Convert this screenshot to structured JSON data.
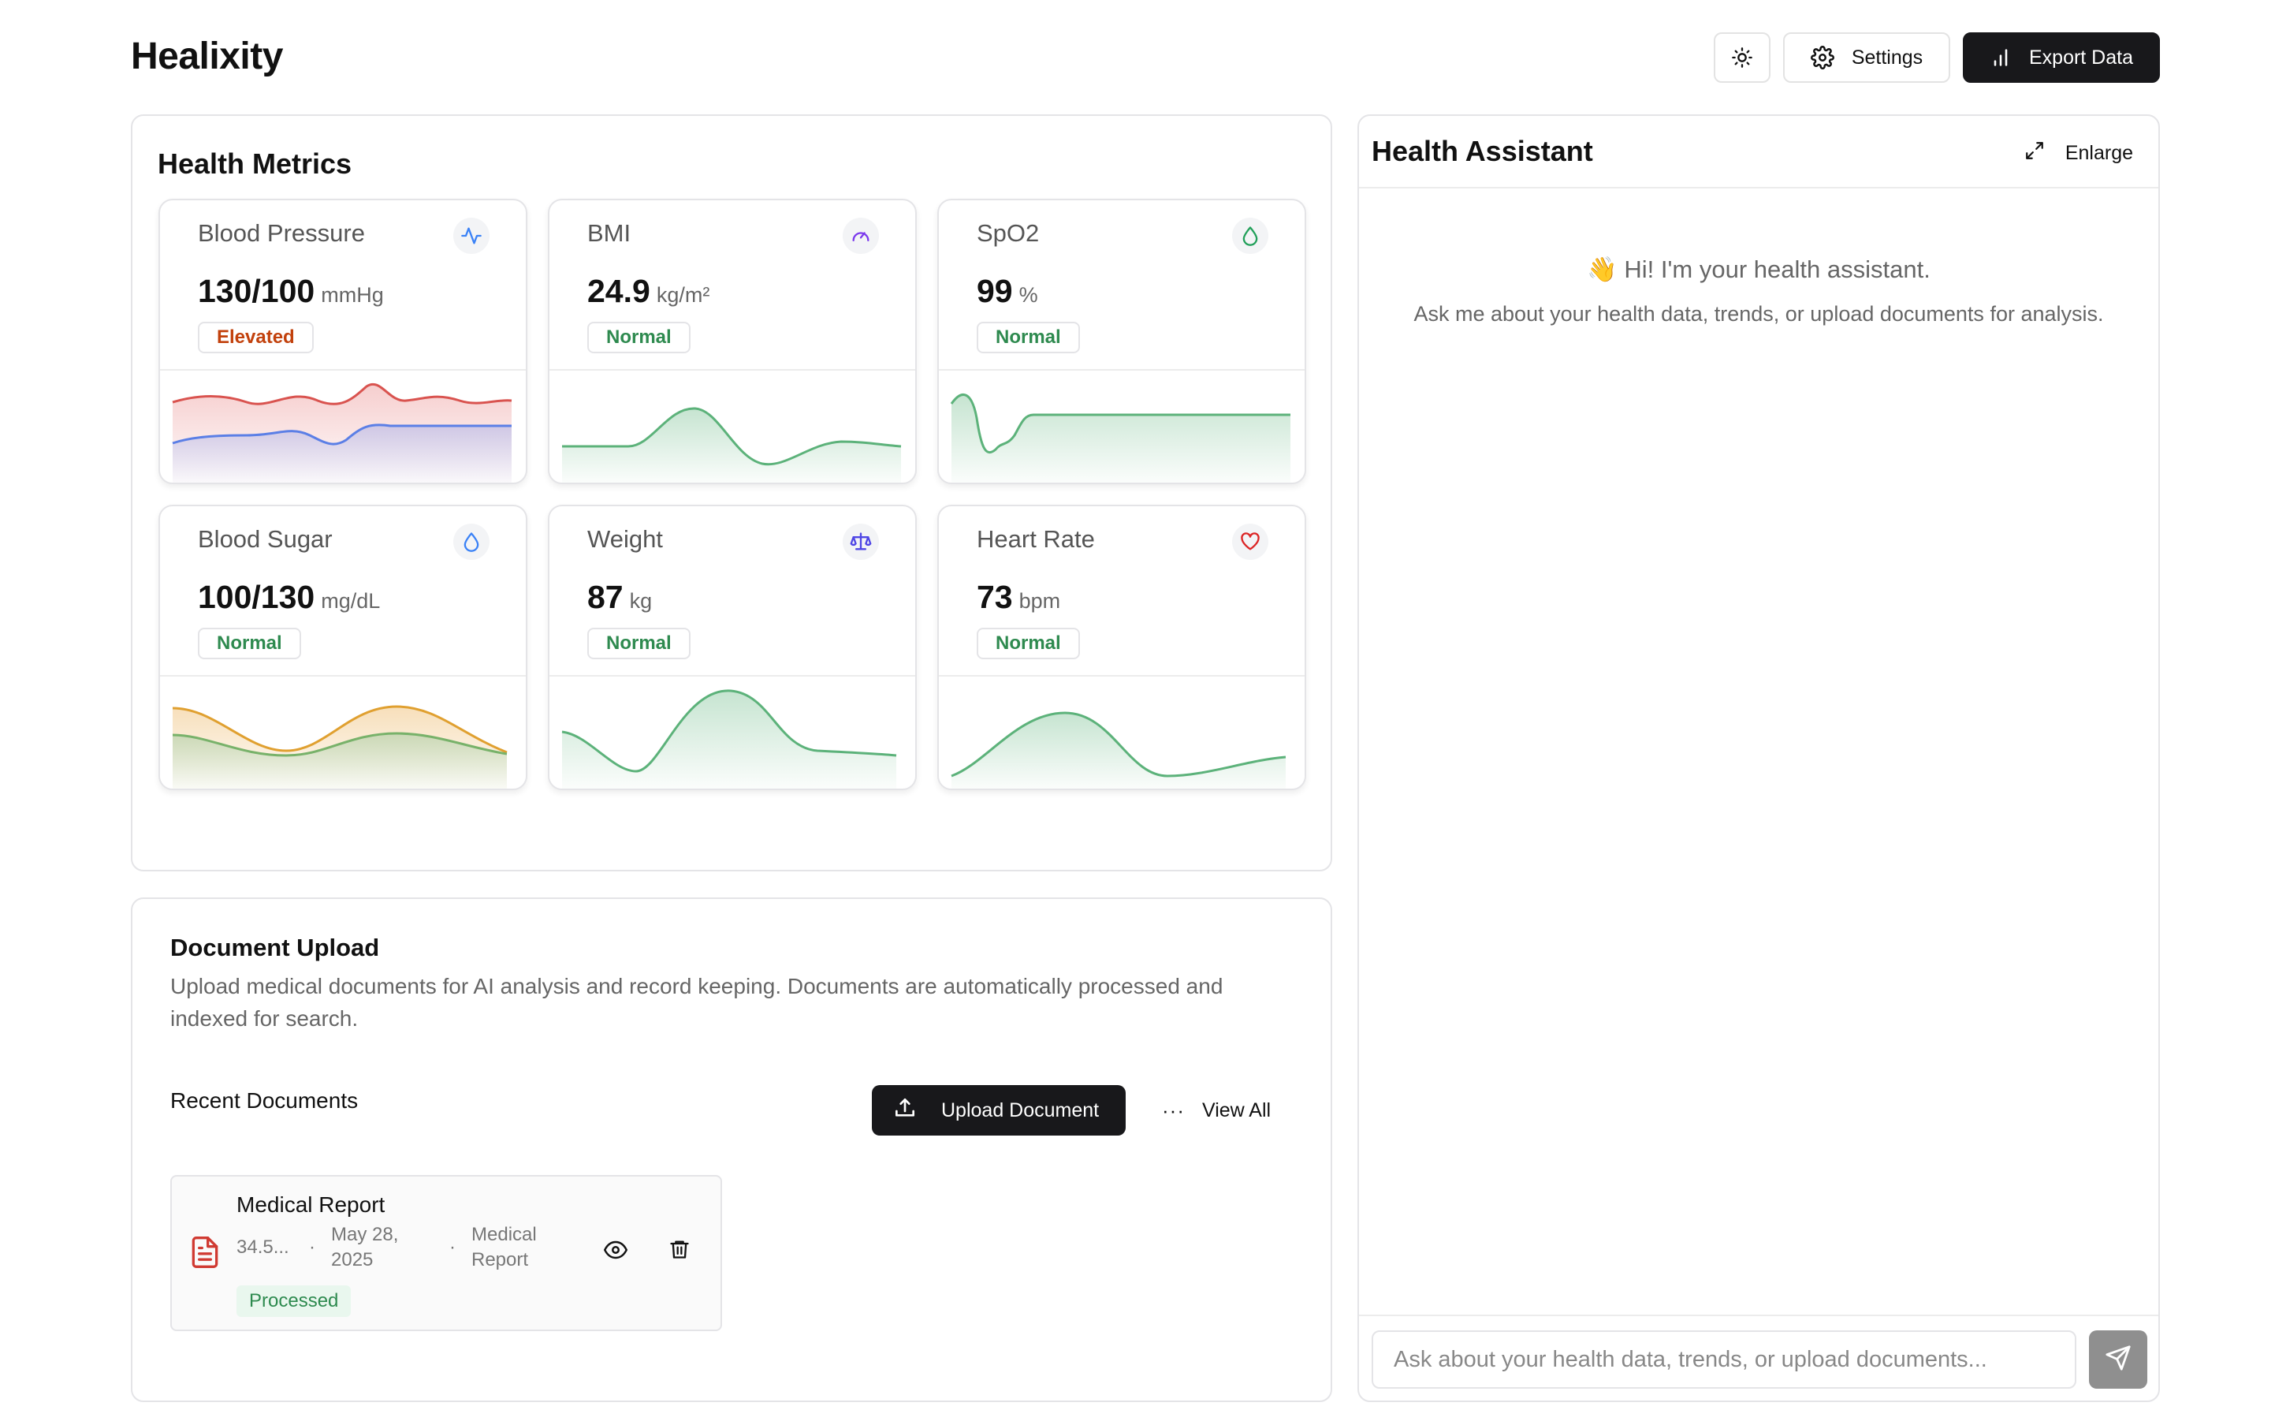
{
  "app": {
    "title": "Healixity"
  },
  "header": {
    "theme_icon": "sun-icon",
    "settings_label": "Settings",
    "export_label": "Export Data"
  },
  "metrics": {
    "title": "Health Metrics",
    "cards": [
      {
        "name": "Blood Pressure",
        "value": "130/100",
        "unit": "mmHg",
        "status": "Elevated",
        "status_color": "#c2410c",
        "icon": "activity-icon",
        "icon_color": "#3b82f6"
      },
      {
        "name": "BMI",
        "value": "24.9",
        "unit": "kg/m²",
        "status": "Normal",
        "status_color": "#2e8a4f",
        "icon": "gauge-icon",
        "icon_color": "#7c3aed"
      },
      {
        "name": "SpO2",
        "value": "99",
        "unit": "%",
        "status": "Normal",
        "status_color": "#2e8a4f",
        "icon": "droplet-icon",
        "icon_color": "#22a05a"
      },
      {
        "name": "Blood Sugar",
        "value": "100/130",
        "unit": "mg/dL",
        "status": "Normal",
        "status_color": "#2e8a4f",
        "icon": "droplet-icon",
        "icon_color": "#3b82f6"
      },
      {
        "name": "Weight",
        "value": "87",
        "unit": "kg",
        "status": "Normal",
        "status_color": "#2e8a4f",
        "icon": "scale-icon",
        "icon_color": "#4f46e5"
      },
      {
        "name": "Heart Rate",
        "value": "73",
        "unit": "bpm",
        "status": "Normal",
        "status_color": "#2e8a4f",
        "icon": "heart-icon",
        "icon_color": "#dc2626"
      }
    ]
  },
  "documents": {
    "title": "Document Upload",
    "description": "Upload medical documents for AI analysis and record keeping. Documents are automatically processed and indexed for search.",
    "recent_label": "Recent Documents",
    "upload_label": "Upload Document",
    "view_all_label": "View All",
    "items": [
      {
        "name": "Medical Report",
        "size": "34.5...",
        "date_line1": "May 28,",
        "date_line2": "2025",
        "type_line1": "Medical",
        "type_line2": "Report",
        "status": "Processed"
      }
    ]
  },
  "assistant": {
    "title": "Health Assistant",
    "enlarge_label": "Enlarge",
    "greeting": "👋 Hi! I'm your health assistant.",
    "subtitle": "Ask me about your health data, trends, or upload documents for analysis.",
    "input_placeholder": "Ask about your health data, trends, or upload documents..."
  },
  "colors": {
    "accent_dark": "#18181b",
    "normal_green": "#2e8a4f",
    "elevated_orange": "#c2410c",
    "chart_green": "#5cb27a",
    "chart_red": "#d9534f",
    "chart_blue": "#5b7fe6",
    "chart_orange": "#e0a030"
  }
}
